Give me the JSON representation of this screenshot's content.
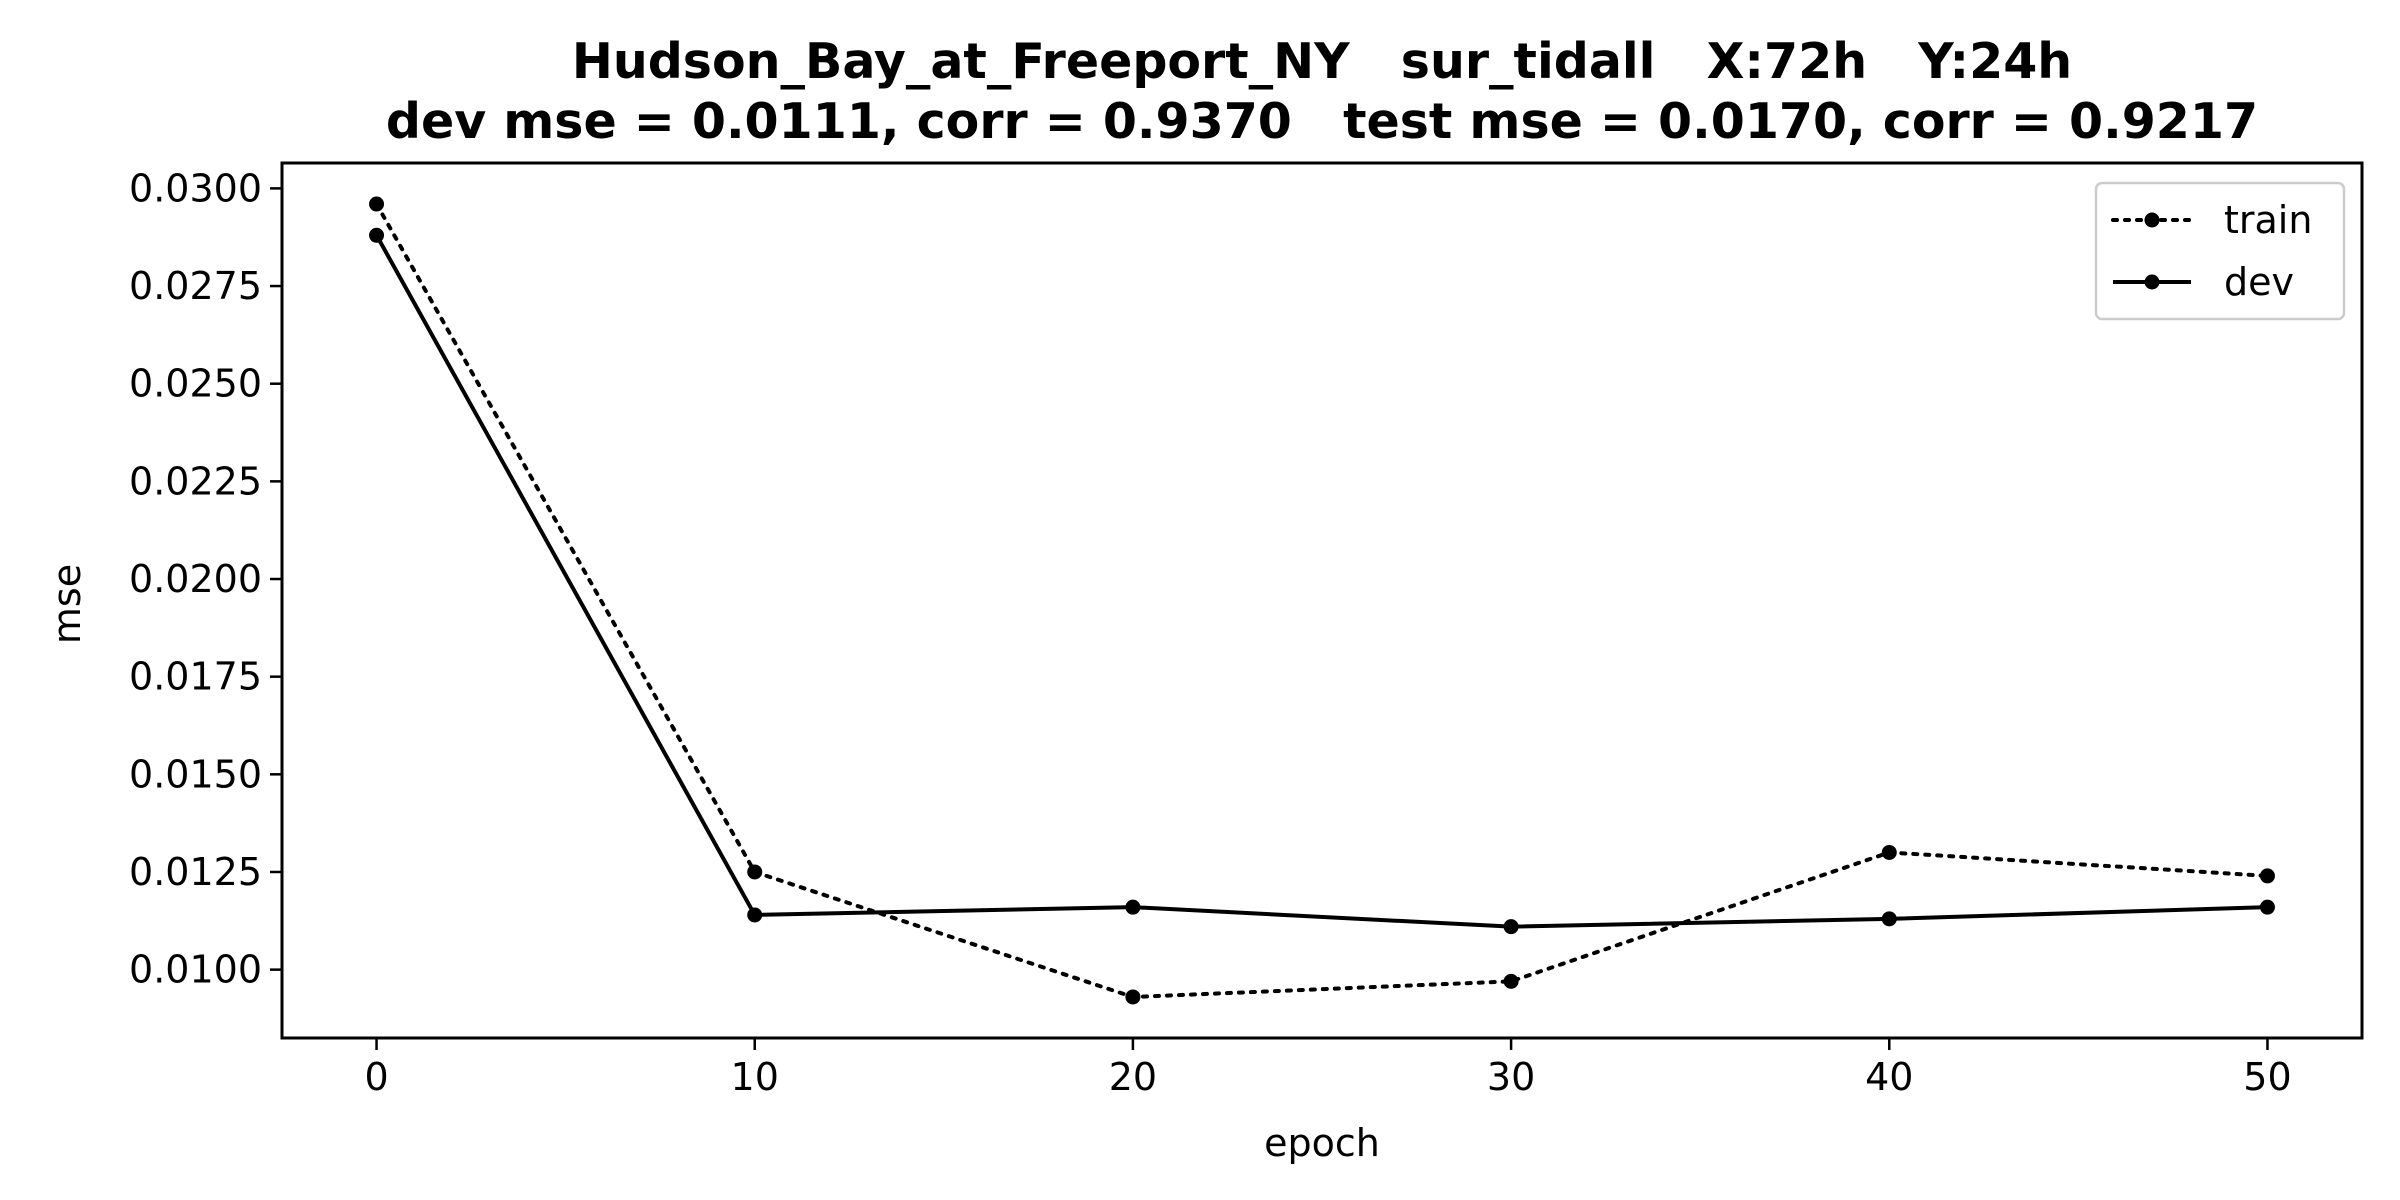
{
  "chart_data": {
    "type": "line",
    "title_line1": "Hudson_Bay_at_Freeport_NY   sur_tidall   X:72h   Y:24h",
    "title_line2": "dev mse = 0.0111, corr = 0.9370   test mse = 0.0170, corr = 0.9217",
    "xlabel": "epoch",
    "ylabel": "mse",
    "x": [
      0,
      10,
      20,
      30,
      40,
      50
    ],
    "xlim": [
      -2.5,
      52.5
    ],
    "ylim": [
      0.00825,
      0.03065
    ],
    "x_ticks": [
      0,
      10,
      20,
      30,
      40,
      50
    ],
    "x_tick_labels": [
      "0",
      "10",
      "20",
      "30",
      "40",
      "50"
    ],
    "y_ticks": [
      0.01,
      0.0125,
      0.015,
      0.0175,
      0.02,
      0.0225,
      0.025,
      0.0275,
      0.03
    ],
    "y_tick_labels": [
      "0.0100",
      "0.0125",
      "0.0150",
      "0.0175",
      "0.0200",
      "0.0225",
      "0.0250",
      "0.0275",
      "0.0300"
    ],
    "grid": false,
    "legend_position": "top-right",
    "series": [
      {
        "name": "train",
        "style": "dotted",
        "color": "#000000",
        "values": [
          0.0296,
          0.0125,
          0.0093,
          0.0097,
          0.013,
          0.0124
        ]
      },
      {
        "name": "dev",
        "style": "solid",
        "color": "#000000",
        "values": [
          0.0288,
          0.0114,
          0.0116,
          0.0111,
          0.0113,
          0.0116
        ]
      }
    ]
  }
}
